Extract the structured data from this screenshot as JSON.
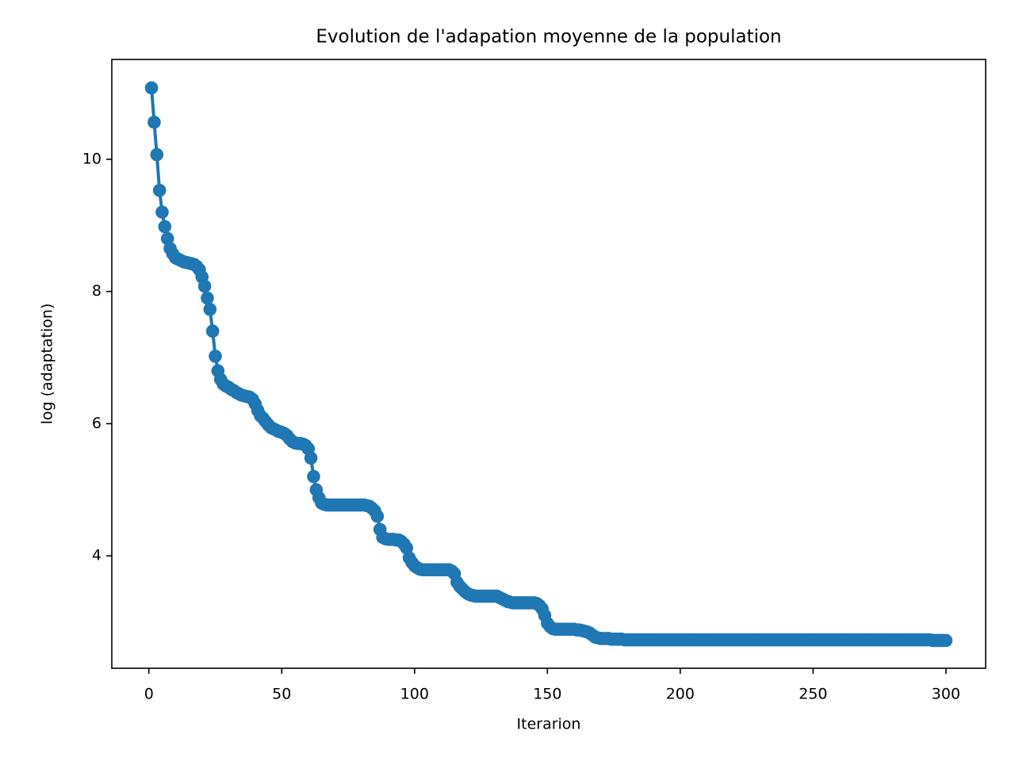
{
  "chart_data": {
    "type": "line",
    "title": "Evolution de l'adapation moyenne de la population",
    "xlabel": "Iterarion",
    "ylabel": "log (adaptation)",
    "xlim": [
      -13.95,
      314.95
    ],
    "ylim": [
      2.3,
      11.51
    ],
    "xticks": [
      0,
      50,
      100,
      150,
      200,
      250,
      300
    ],
    "yticks": [
      4,
      6,
      8,
      10
    ],
    "grid": false,
    "marker": true,
    "x": [
      1,
      2,
      3,
      4,
      5,
      6,
      7,
      8,
      9,
      10,
      11,
      12,
      13,
      14,
      15,
      16,
      17,
      18,
      19,
      20,
      21,
      22,
      23,
      24,
      25,
      26,
      27,
      28,
      29,
      30,
      31,
      32,
      33,
      34,
      35,
      36,
      37,
      38,
      39,
      40,
      41,
      42,
      43,
      44,
      45,
      46,
      47,
      48,
      49,
      50,
      51,
      52,
      53,
      54,
      55,
      56,
      57,
      58,
      59,
      60,
      61,
      62,
      63,
      64,
      65,
      66,
      67,
      68,
      69,
      70,
      71,
      72,
      73,
      74,
      75,
      76,
      77,
      78,
      79,
      80,
      81,
      82,
      83,
      84,
      85,
      86,
      87,
      88,
      89,
      90,
      91,
      92,
      93,
      94,
      95,
      96,
      97,
      98,
      99,
      100,
      101,
      102,
      103,
      104,
      105,
      106,
      107,
      108,
      109,
      110,
      111,
      112,
      113,
      114,
      115,
      116,
      117,
      118,
      119,
      120,
      121,
      122,
      123,
      124,
      125,
      126,
      127,
      128,
      129,
      130,
      131,
      132,
      133,
      134,
      135,
      136,
      137,
      138,
      139,
      140,
      141,
      142,
      143,
      144,
      145,
      146,
      147,
      148,
      149,
      150,
      151,
      152,
      153,
      154,
      155,
      156,
      157,
      158,
      159,
      160,
      161,
      162,
      163,
      164,
      165,
      166,
      167,
      168,
      169,
      170,
      171,
      172,
      173,
      174,
      175,
      176,
      177,
      178,
      179,
      180,
      181,
      182,
      183,
      184,
      185,
      186,
      187,
      188,
      189,
      190,
      191,
      192,
      193,
      194,
      195,
      196,
      197,
      198,
      199,
      200,
      201,
      202,
      203,
      204,
      205,
      206,
      207,
      208,
      209,
      210,
      211,
      212,
      213,
      214,
      215,
      216,
      217,
      218,
      219,
      220,
      221,
      222,
      223,
      224,
      225,
      226,
      227,
      228,
      229,
      230,
      231,
      232,
      233,
      234,
      235,
      236,
      237,
      238,
      239,
      240,
      241,
      242,
      243,
      244,
      245,
      246,
      247,
      248,
      249,
      250,
      251,
      252,
      253,
      254,
      255,
      256,
      257,
      258,
      259,
      260,
      261,
      262,
      263,
      264,
      265,
      266,
      267,
      268,
      269,
      270,
      271,
      272,
      273,
      274,
      275,
      276,
      277,
      278,
      279,
      280,
      281,
      282,
      283,
      284,
      285,
      286,
      287,
      288,
      289,
      290,
      291,
      292,
      293,
      294,
      295,
      296,
      297,
      298,
      299,
      300
    ],
    "series": [
      {
        "color": "#1f77b4",
        "values": [
          11.08,
          10.56,
          10.07,
          9.53,
          9.2,
          8.98,
          8.8,
          8.65,
          8.57,
          8.51,
          8.49,
          8.47,
          8.45,
          8.44,
          8.43,
          8.42,
          8.41,
          8.38,
          8.33,
          8.22,
          8.08,
          7.9,
          7.73,
          7.4,
          7.02,
          6.8,
          6.67,
          6.6,
          6.57,
          6.55,
          6.52,
          6.5,
          6.47,
          6.45,
          6.43,
          6.42,
          6.41,
          6.4,
          6.37,
          6.3,
          6.2,
          6.12,
          6.08,
          6.03,
          5.98,
          5.94,
          5.92,
          5.9,
          5.88,
          5.87,
          5.85,
          5.82,
          5.77,
          5.73,
          5.71,
          5.7,
          5.7,
          5.69,
          5.67,
          5.62,
          5.48,
          5.2,
          5.0,
          4.88,
          4.8,
          4.78,
          4.77,
          4.77,
          4.77,
          4.77,
          4.77,
          4.77,
          4.77,
          4.77,
          4.77,
          4.77,
          4.77,
          4.77,
          4.77,
          4.77,
          4.77,
          4.76,
          4.75,
          4.72,
          4.68,
          4.6,
          4.4,
          4.28,
          4.26,
          4.25,
          4.25,
          4.25,
          4.24,
          4.24,
          4.22,
          4.18,
          4.12,
          3.97,
          3.9,
          3.85,
          3.82,
          3.8,
          3.79,
          3.79,
          3.79,
          3.79,
          3.79,
          3.79,
          3.79,
          3.79,
          3.79,
          3.79,
          3.79,
          3.77,
          3.73,
          3.6,
          3.54,
          3.5,
          3.46,
          3.43,
          3.41,
          3.4,
          3.39,
          3.39,
          3.39,
          3.39,
          3.39,
          3.39,
          3.39,
          3.39,
          3.39,
          3.37,
          3.35,
          3.33,
          3.31,
          3.3,
          3.29,
          3.29,
          3.29,
          3.29,
          3.29,
          3.29,
          3.29,
          3.29,
          3.29,
          3.28,
          3.25,
          3.2,
          3.1,
          2.98,
          2.93,
          2.9,
          2.89,
          2.89,
          2.89,
          2.89,
          2.89,
          2.89,
          2.89,
          2.89,
          2.88,
          2.88,
          2.87,
          2.86,
          2.85,
          2.83,
          2.8,
          2.77,
          2.76,
          2.75,
          2.75,
          2.75,
          2.75,
          2.74,
          2.74,
          2.74,
          2.74,
          2.74,
          2.73,
          2.73,
          2.73,
          2.73,
          2.73,
          2.73,
          2.73,
          2.73,
          2.73,
          2.73,
          2.73,
          2.73,
          2.73,
          2.73,
          2.73,
          2.73,
          2.73,
          2.73,
          2.73,
          2.73,
          2.73,
          2.73,
          2.73,
          2.73,
          2.73,
          2.73,
          2.73,
          2.73,
          2.73,
          2.73,
          2.73,
          2.73,
          2.73,
          2.73,
          2.73,
          2.73,
          2.73,
          2.73,
          2.73,
          2.73,
          2.73,
          2.73,
          2.73,
          2.73,
          2.73,
          2.73,
          2.73,
          2.73,
          2.73,
          2.73,
          2.73,
          2.73,
          2.73,
          2.73,
          2.73,
          2.73,
          2.73,
          2.73,
          2.73,
          2.73,
          2.73,
          2.73,
          2.73,
          2.73,
          2.73,
          2.73,
          2.73,
          2.73,
          2.73,
          2.73,
          2.73,
          2.73,
          2.73,
          2.73,
          2.73,
          2.73,
          2.73,
          2.73,
          2.73,
          2.73,
          2.73,
          2.73,
          2.73,
          2.73,
          2.73,
          2.73,
          2.73,
          2.73,
          2.73,
          2.73,
          2.73,
          2.73,
          2.73,
          2.73,
          2.73,
          2.73,
          2.73,
          2.73,
          2.73,
          2.73,
          2.73,
          2.73,
          2.73,
          2.73,
          2.73,
          2.73,
          2.73,
          2.73,
          2.73,
          2.73,
          2.73,
          2.73,
          2.73,
          2.73,
          2.73,
          2.73,
          2.72,
          2.72,
          2.72,
          2.72,
          2.72,
          2.72
        ]
      }
    ]
  }
}
